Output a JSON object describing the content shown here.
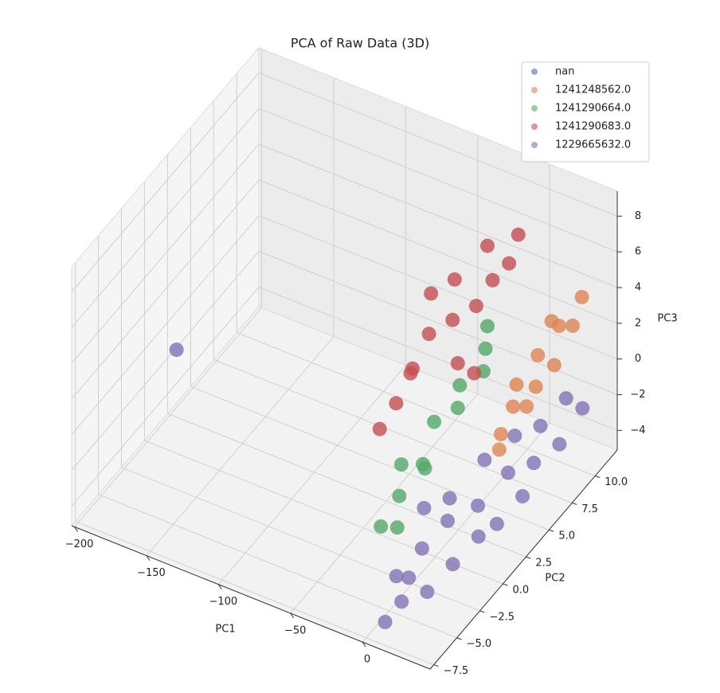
{
  "chart_data": {
    "type": "scatter3d",
    "title": "PCA of Raw Data (3D)",
    "x_label": "PC1",
    "y_label": "PC2",
    "z_label": "PC3",
    "xlim": [
      -202,
      47
    ],
    "ylim": [
      -7.9,
      12.4
    ],
    "zlim": [
      -5.1,
      9.4
    ],
    "xticks": [
      {
        "value": -200,
        "label": "−200"
      },
      {
        "value": -150,
        "label": "−150"
      },
      {
        "value": -100,
        "label": "−100"
      },
      {
        "value": -50,
        "label": "−50"
      },
      0
    ],
    "yticks": [
      {
        "value": -7.5,
        "label": "−7.5"
      },
      {
        "value": -5,
        "label": "−5.0"
      },
      {
        "value": -2.5,
        "label": "−2.5"
      },
      {
        "value": 0,
        "label": "0.0"
      },
      {
        "value": 2.5,
        "label": "2.5"
      },
      {
        "value": 5,
        "label": "5.0"
      },
      {
        "value": 7.5,
        "label": "7.5"
      },
      {
        "value": 10,
        "label": "10.0"
      }
    ],
    "zticks": [
      {
        "value": -4,
        "label": "−4"
      },
      {
        "value": -2,
        "label": "−2"
      },
      0,
      2,
      4,
      6,
      8
    ],
    "grid": true,
    "legend": "upper right",
    "series": [
      {
        "name": "nan",
        "color": "#4c72b0",
        "x": [],
        "y": [],
        "z": []
      },
      {
        "name": "1241248562.0",
        "color": "#dd8452",
        "x": [
          20,
          22,
          25,
          18,
          25,
          20,
          25,
          22,
          25,
          25,
          20,
          22
        ],
        "y": [
          4,
          5,
          6,
          6,
          7,
          8,
          9,
          10,
          11,
          12,
          9.5,
          3.5
        ],
        "z": [
          0,
          1,
          0.5,
          1.5,
          1,
          2,
          1,
          2.5,
          2,
          3,
          3,
          -0.5
        ]
      },
      {
        "name": "1241290664.0",
        "color": "#55a868",
        "x": [
          -20,
          -25,
          -15,
          -20,
          -10,
          -15,
          -5,
          -10,
          -20,
          -25,
          -15,
          -30
        ],
        "y": [
          2,
          0,
          1,
          3,
          4,
          5,
          6,
          7,
          -1,
          -2,
          8,
          1
        ],
        "z": [
          -2,
          -2.5,
          -1,
          0,
          0.5,
          1,
          1.5,
          2,
          -3.5,
          -3,
          2.5,
          -1.5
        ]
      },
      {
        "name": "1241290683.0",
        "color": "#c44e52",
        "x": [
          -40,
          -35,
          -45,
          -30,
          -30,
          -20,
          -10,
          -5,
          0,
          -15,
          -25,
          -10,
          -5,
          0,
          -35
        ],
        "y": [
          2,
          3,
          1,
          2,
          4,
          5,
          6,
          7,
          8,
          8,
          6,
          4,
          5,
          9,
          5
        ],
        "z": [
          1,
          2.5,
          0,
          3,
          4,
          4.5,
          5,
          6,
          6.5,
          7,
          6,
          3,
          2,
          7.5,
          5.5
        ]
      },
      {
        "name": "1229665632.0",
        "color": "#8172b3",
        "x": [
          10,
          15,
          5,
          20,
          10,
          25,
          15,
          30,
          10,
          20,
          30,
          15,
          25,
          35,
          20,
          30,
          25,
          35,
          30,
          35,
          20,
          5,
          -190
        ],
        "y": [
          -7,
          -6,
          -5,
          -4,
          -3,
          -2,
          -1,
          0,
          0,
          1.5,
          2,
          3,
          4,
          4,
          5.5,
          6,
          7.5,
          8,
          9.5,
          10.5,
          -6,
          -2,
          1.6
        ],
        "z": [
          -4.2,
          -3.5,
          -3,
          -4,
          -2.5,
          -3.5,
          -2,
          -3,
          -1.5,
          -2.5,
          -3.5,
          -1,
          -2,
          -3,
          -1,
          -2.5,
          -1.5,
          -2.5,
          -1,
          -2,
          -2,
          -1,
          -0.6
        ]
      }
    ]
  }
}
